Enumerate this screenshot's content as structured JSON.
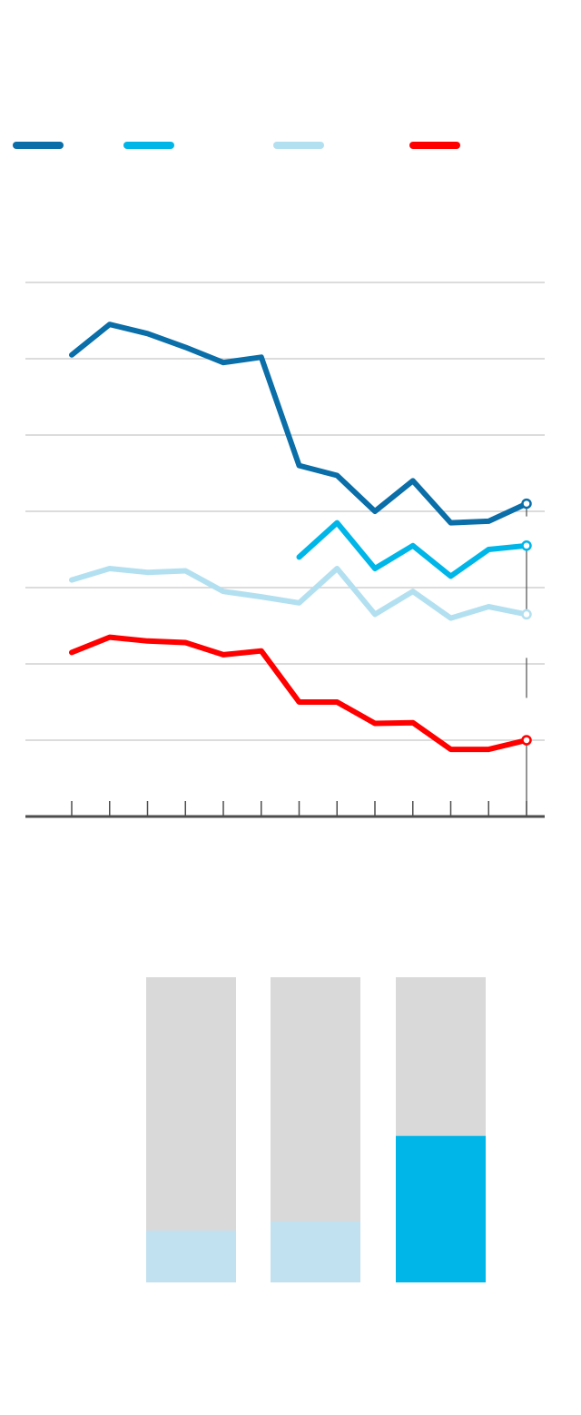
{
  "colors": {
    "series_dark_blue": "#0a6ea8",
    "series_blue": "#00b6e8",
    "series_light_blue": "#b3e0f0",
    "series_red": "#ff0000",
    "gridline": "#d0d0d0",
    "axis": "#4d4d4d",
    "bar_background": "#d9d9d9",
    "bar_light_fill": "#c1e1f0",
    "bar_highlight_fill": "#00b6e8"
  },
  "chart_data": [
    {
      "type": "line",
      "title": "",
      "xlabel": "",
      "ylabel": "",
      "legend_position": "top",
      "grid": true,
      "ylim": [
        0,
        7
      ],
      "x": [
        1,
        2,
        3,
        4,
        5,
        6,
        7,
        8,
        9,
        10,
        11,
        12,
        13
      ],
      "series": [
        {
          "color": "#0a6ea8",
          "values": [
            6.05,
            6.45,
            6.33,
            6.15,
            5.95,
            6.02,
            4.6,
            4.47,
            4.0,
            4.4,
            3.85,
            3.87,
            4.1
          ]
        },
        {
          "color": "#00b6e8",
          "values": [
            null,
            null,
            null,
            null,
            null,
            null,
            3.4,
            3.85,
            3.25,
            3.55,
            3.15,
            3.5,
            3.55
          ]
        },
        {
          "color": "#b3e0f0",
          "values": [
            3.1,
            3.25,
            3.2,
            3.22,
            2.95,
            2.88,
            2.8,
            3.25,
            2.65,
            2.95,
            2.6,
            2.75,
            2.65
          ]
        },
        {
          "color": "#ff0000",
          "values": [
            2.15,
            2.35,
            2.3,
            2.28,
            2.12,
            2.17,
            1.5,
            1.5,
            1.22,
            1.23,
            0.88,
            0.88,
            1.0
          ]
        }
      ]
    },
    {
      "type": "bar",
      "title": "",
      "ylim": [
        0,
        1
      ],
      "categories": [
        "",
        "",
        ""
      ],
      "values": [
        0.17,
        0.2,
        0.48
      ],
      "highlight_index": 2
    }
  ]
}
